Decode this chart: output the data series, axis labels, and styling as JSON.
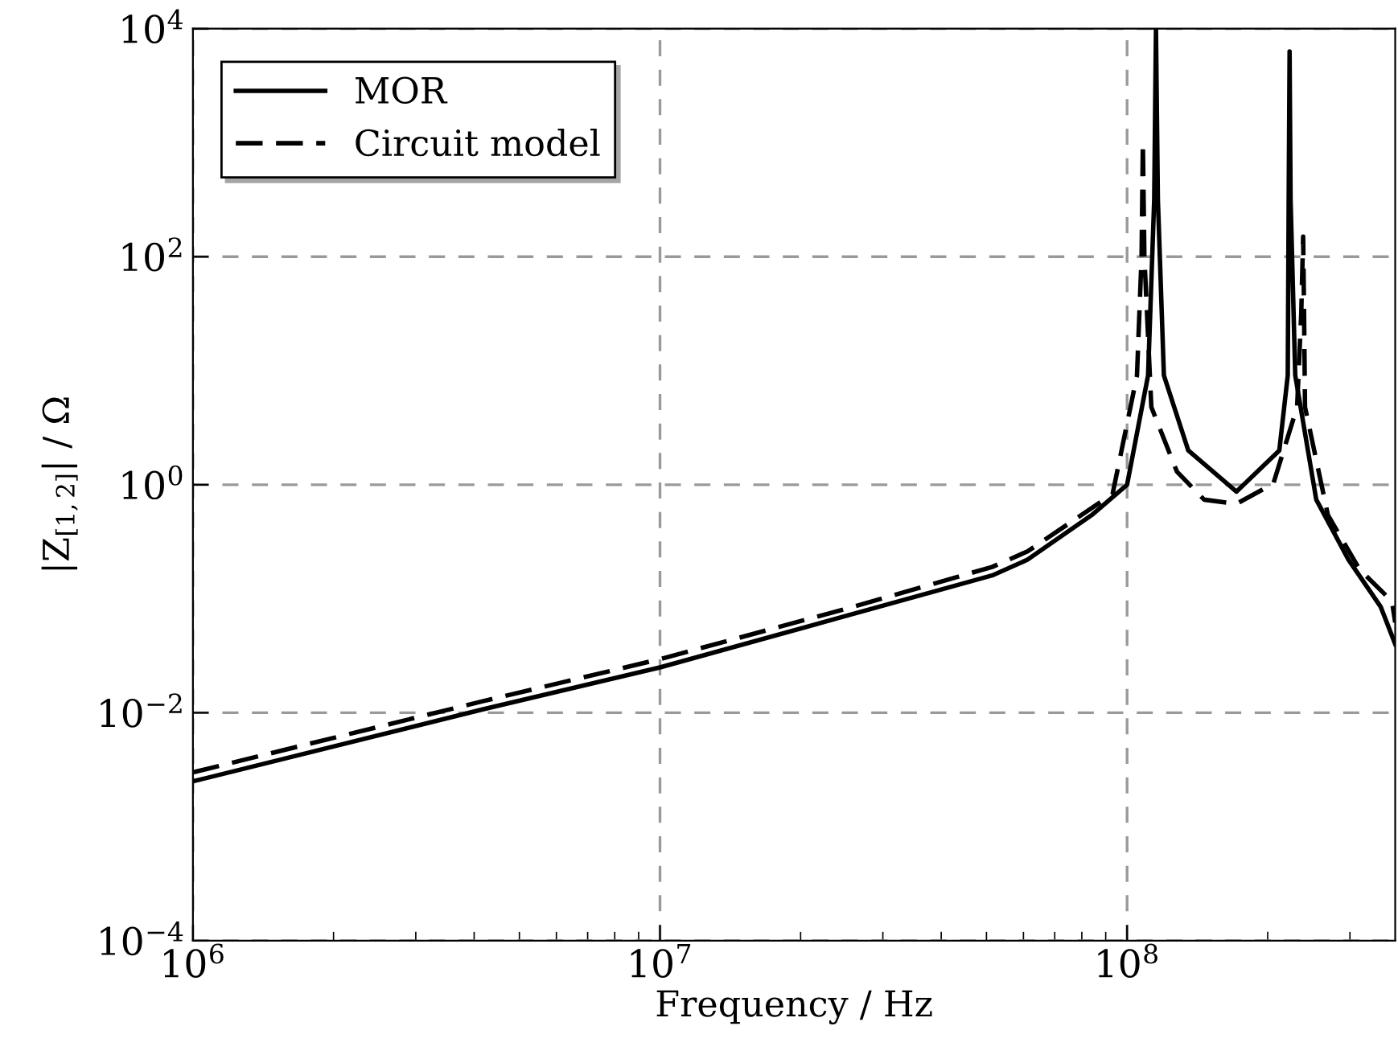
{
  "chart_data": {
    "type": "line",
    "xlabel": "Frequency / Hz",
    "ylabel": "|Z$_{[1,2]}$| / Ω",
    "log": "xy",
    "grid": true,
    "legend": "top left",
    "xlim": [
      1000000,
      375000000
    ],
    "ylim": [
      0.0001,
      10000
    ],
    "xticks": [
      {
        "value": 1000000,
        "label": "10$^{6}$"
      },
      {
        "value": 10000000,
        "label": "10$^{7}$"
      },
      {
        "value": 100000000,
        "label": "10$^{8}$"
      }
    ],
    "yticks": [
      {
        "value": 0.0001,
        "label": "10$^{−4}$"
      },
      {
        "value": 0.01,
        "label": "10$^{−2}$"
      },
      {
        "value": 1,
        "label": "10$^{0}$"
      },
      {
        "value": 100,
        "label": "10$^{2}$"
      },
      {
        "value": 10000,
        "label": "10$^{4}$"
      }
    ],
    "series": [
      {
        "name": "MOR",
        "color": "#000000",
        "line_style": "solid",
        "x": [
          1000000,
          4170000,
          10000000,
          25400000,
          51400000,
          61200000,
          83900000,
          100000000,
          110900000,
          114300000,
          115300000,
          116400000,
          119900000,
          135200000,
          171400000,
          211800000,
          220800000,
          221800000,
          222800000,
          223900000,
          229100000,
          254100000,
          297900000,
          349100000,
          375000000
        ],
        "values": [
          0.0025,
          0.0107,
          0.025,
          0.072,
          0.16,
          0.22,
          0.54,
          1.0,
          9.1,
          316,
          10000,
          316,
          9.1,
          2.0,
          0.87,
          2.0,
          9.1,
          316,
          6300,
          316,
          9.1,
          0.74,
          0.22,
          0.085,
          0.04
        ]
      },
      {
        "name": "Circuit model",
        "color": "#000000",
        "line_style": "dashed",
        "x": [
          1000000,
          4170000,
          10000000,
          25400000,
          51400000,
          61200000,
          93100000,
          105000000,
          107400000,
          108100000,
          108900000,
          112700000,
          127900000,
          146200000,
          171400000,
          205600000,
          231200000,
          236000000,
          238200000,
          239300000,
          240400000,
          269200000,
          314800000,
          369000000,
          375000000
        ],
        "values": [
          0.003,
          0.0126,
          0.0295,
          0.083,
          0.19,
          0.26,
          0.83,
          9.1,
          100,
          1000,
          100,
          4.8,
          1.3,
          0.74,
          0.68,
          1.02,
          4.8,
          32,
          150,
          32,
          4.8,
          0.54,
          0.18,
          0.095,
          0.062
        ]
      }
    ]
  }
}
